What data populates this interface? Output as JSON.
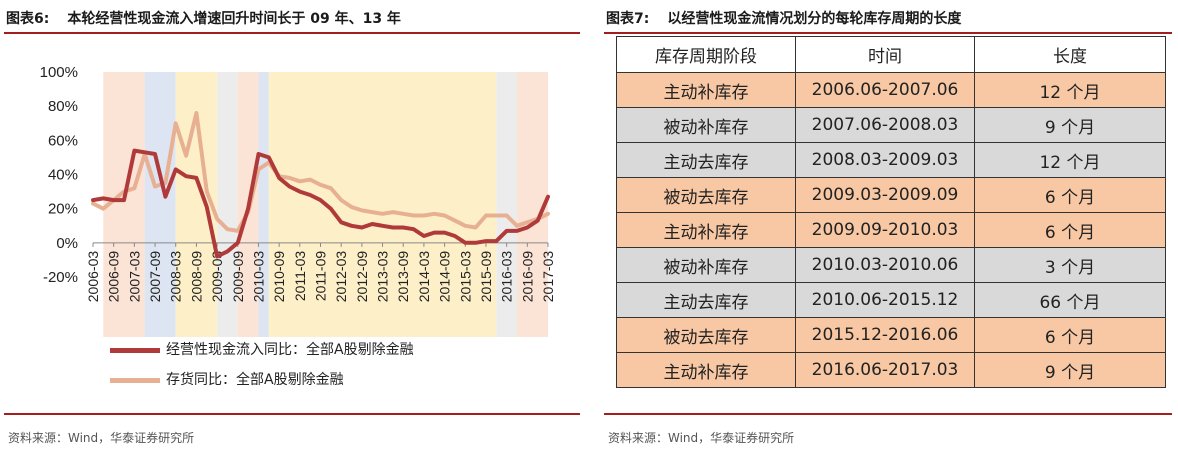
{
  "left": {
    "fig_num": "图表6:",
    "title": "本轮经营性现金流入增速回升时间长于 09 年、13 年",
    "source": "资料来源：Wind，华泰证券研究所"
  },
  "right": {
    "fig_num": "图表7:",
    "title": "以经营性现金流情况划分的每轮库存周期的长度",
    "source": "资料来源：Wind，华泰证券研究所",
    "table": {
      "headers": [
        "库存周期阶段",
        "时间",
        "长度"
      ],
      "rows": [
        {
          "stage": "主动补库存",
          "period": "2006.06-2007.06",
          "length": "12 个月",
          "type": "active-restock"
        },
        {
          "stage": "被动补库存",
          "period": "2007.06-2008.03",
          "length": "9 个月",
          "type": "passive-restock"
        },
        {
          "stage": "主动去库存",
          "period": "2008.03-2009.03",
          "length": "12 个月",
          "type": "active-destock"
        },
        {
          "stage": "被动去库存",
          "period": "2009.03-2009.09",
          "length": "6 个月",
          "type": "passive-destock"
        },
        {
          "stage": "主动补库存",
          "period": "2009.09-2010.03",
          "length": "6 个月",
          "type": "active-restock"
        },
        {
          "stage": "被动补库存",
          "period": "2010.03-2010.06",
          "length": "3 个月",
          "type": "passive-restock"
        },
        {
          "stage": "主动去库存",
          "period": "2010.06-2015.12",
          "length": "66 个月",
          "type": "active-destock"
        },
        {
          "stage": "被动去库存",
          "period": "2015.12-2016.06",
          "length": "6 个月",
          "type": "passive-destock"
        },
        {
          "stage": "主动补库存",
          "period": "2016.06-2017.03",
          "length": "9 个月",
          "type": "active-restock"
        }
      ],
      "row_colors": {
        "active-restock": "#f8c8a4",
        "passive-restock": "#d9d9d9",
        "active-destock": "#d9d9d9",
        "passive-destock": "#f8c8a4"
      }
    }
  },
  "colors": {
    "accent": "#a31f1f",
    "series_cashflow": "#b03a3a",
    "series_inventory": "#e8b092",
    "band_active_restock": "#fbe3d6",
    "band_passive_restock": "#dde5f2",
    "band_active_destock": "#fdf0c8",
    "band_passive_destock": "#ececec"
  },
  "chart_data": {
    "type": "line",
    "ylim": [
      -20,
      100
    ],
    "yticks": [
      -20,
      0,
      20,
      40,
      60,
      80,
      100
    ],
    "ytick_labels": [
      "-20%",
      "0%",
      "20%",
      "40%",
      "60%",
      "80%",
      "100%"
    ],
    "xtick_labels": [
      "2006-03",
      "2006-09",
      "2007-03",
      "2007-09",
      "2008-03",
      "2008-09",
      "2009-03",
      "2009-09",
      "2010-03",
      "2010-09",
      "2011-03",
      "2011-09",
      "2012-03",
      "2012-09",
      "2013-03",
      "2013-09",
      "2014-03",
      "2014-09",
      "2015-03",
      "2015-09",
      "2016-03",
      "2016-09",
      "2017-03"
    ],
    "bands": [
      {
        "from": "2006-06",
        "to": "2007-06",
        "type": "active-restock"
      },
      {
        "from": "2007-06",
        "to": "2008-03",
        "type": "passive-restock"
      },
      {
        "from": "2008-03",
        "to": "2009-03",
        "type": "active-destock"
      },
      {
        "from": "2009-03",
        "to": "2009-09",
        "type": "passive-destock"
      },
      {
        "from": "2009-09",
        "to": "2010-03",
        "type": "active-restock"
      },
      {
        "from": "2010-03",
        "to": "2010-06",
        "type": "passive-restock"
      },
      {
        "from": "2010-06",
        "to": "2015-12",
        "type": "active-destock"
      },
      {
        "from": "2015-12",
        "to": "2016-06",
        "type": "passive-destock"
      },
      {
        "from": "2016-06",
        "to": "2017-03",
        "type": "active-restock"
      }
    ],
    "series": [
      {
        "name": "经营性现金流入同比：全部A股剔除金融",
        "points": [
          [
            "2006-03",
            25
          ],
          [
            "2006-06",
            26
          ],
          [
            "2006-09",
            25
          ],
          [
            "2006-12",
            25
          ],
          [
            "2007-03",
            54
          ],
          [
            "2007-06",
            53
          ],
          [
            "2007-09",
            52
          ],
          [
            "2007-12",
            27
          ],
          [
            "2008-03",
            43
          ],
          [
            "2008-06",
            39
          ],
          [
            "2008-09",
            38
          ],
          [
            "2008-12",
            21
          ],
          [
            "2009-03",
            -8
          ],
          [
            "2009-06",
            -5
          ],
          [
            "2009-09",
            0
          ],
          [
            "2009-12",
            20
          ],
          [
            "2010-03",
            52
          ],
          [
            "2010-06",
            50
          ],
          [
            "2010-09",
            38
          ],
          [
            "2010-12",
            33
          ],
          [
            "2011-03",
            30
          ],
          [
            "2011-06",
            28
          ],
          [
            "2011-09",
            25
          ],
          [
            "2011-12",
            20
          ],
          [
            "2012-03",
            12
          ],
          [
            "2012-06",
            10
          ],
          [
            "2012-09",
            9
          ],
          [
            "2012-12",
            11
          ],
          [
            "2013-03",
            10
          ],
          [
            "2013-06",
            9
          ],
          [
            "2013-09",
            9
          ],
          [
            "2013-12",
            8
          ],
          [
            "2014-03",
            4
          ],
          [
            "2014-06",
            6
          ],
          [
            "2014-09",
            6
          ],
          [
            "2014-12",
            4
          ],
          [
            "2015-03",
            0
          ],
          [
            "2015-06",
            0
          ],
          [
            "2015-09",
            1
          ],
          [
            "2015-12",
            1
          ],
          [
            "2016-03",
            7
          ],
          [
            "2016-06",
            7
          ],
          [
            "2016-09",
            9
          ],
          [
            "2016-12",
            13
          ],
          [
            "2017-03",
            27
          ]
        ]
      },
      {
        "name": "存货同比：全部A股剔除金融",
        "points": [
          [
            "2006-03",
            23
          ],
          [
            "2006-06",
            20
          ],
          [
            "2006-09",
            25
          ],
          [
            "2006-12",
            30
          ],
          [
            "2007-03",
            32
          ],
          [
            "2007-06",
            52
          ],
          [
            "2007-09",
            33
          ],
          [
            "2007-12",
            35
          ],
          [
            "2008-03",
            70
          ],
          [
            "2008-06",
            51
          ],
          [
            "2008-09",
            76
          ],
          [
            "2008-12",
            30
          ],
          [
            "2009-03",
            14
          ],
          [
            "2009-06",
            8
          ],
          [
            "2009-09",
            7
          ],
          [
            "2009-12",
            18
          ],
          [
            "2010-03",
            43
          ],
          [
            "2010-06",
            47
          ],
          [
            "2010-09",
            39
          ],
          [
            "2010-12",
            38
          ],
          [
            "2011-03",
            36
          ],
          [
            "2011-06",
            37
          ],
          [
            "2011-09",
            34
          ],
          [
            "2011-12",
            32
          ],
          [
            "2012-03",
            25
          ],
          [
            "2012-06",
            21
          ],
          [
            "2012-09",
            19
          ],
          [
            "2012-12",
            18
          ],
          [
            "2013-03",
            17
          ],
          [
            "2013-06",
            18
          ],
          [
            "2013-09",
            17
          ],
          [
            "2013-12",
            16
          ],
          [
            "2014-03",
            16
          ],
          [
            "2014-06",
            17
          ],
          [
            "2014-09",
            16
          ],
          [
            "2014-12",
            13
          ],
          [
            "2015-03",
            10
          ],
          [
            "2015-06",
            9
          ],
          [
            "2015-09",
            16
          ],
          [
            "2015-12",
            16
          ],
          [
            "2016-03",
            16
          ],
          [
            "2016-06",
            10
          ],
          [
            "2016-09",
            12
          ],
          [
            "2016-12",
            14
          ],
          [
            "2017-03",
            17
          ]
        ]
      }
    ]
  }
}
